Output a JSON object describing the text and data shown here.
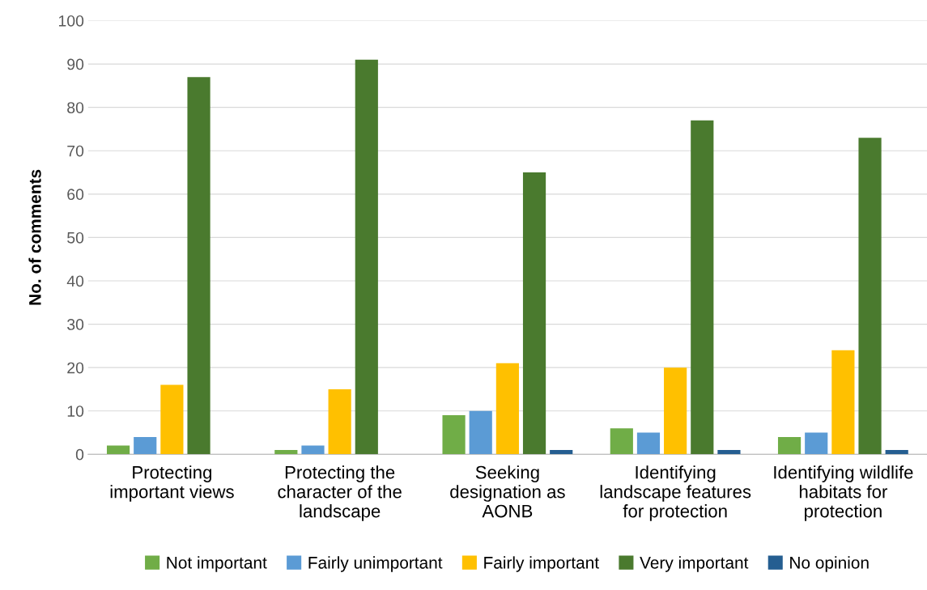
{
  "chart_data": {
    "type": "bar",
    "ylabel": "No. of comments",
    "categories": [
      "Protecting\nimportant views",
      "Protecting the\ncharacter of the\nlandscape",
      "Seeking\ndesignation as\nAONB",
      "Identifying\nlandscape features\nfor protection",
      "Identifying wildlife\nhabitats for\nprotection"
    ],
    "series": [
      {
        "name": "Not important",
        "color": "#70ad47",
        "values": [
          2,
          1,
          9,
          6,
          4
        ]
      },
      {
        "name": "Fairly unimportant",
        "color": "#5b9bd5",
        "values": [
          4,
          2,
          10,
          5,
          5
        ]
      },
      {
        "name": "Fairly important",
        "color": "#ffc000",
        "values": [
          16,
          15,
          21,
          20,
          24
        ]
      },
      {
        "name": "Very important",
        "color": "#4a7a2e",
        "values": [
          87,
          91,
          65,
          77,
          73
        ]
      },
      {
        "name": "No opinion",
        "color": "#255e91",
        "values": [
          0,
          0,
          1,
          1,
          1
        ]
      }
    ],
    "ylim": [
      0,
      100
    ],
    "yticks": [
      0,
      10,
      20,
      30,
      40,
      50,
      60,
      70,
      80,
      90,
      100
    ],
    "grid": "y",
    "legend": "bottom"
  }
}
